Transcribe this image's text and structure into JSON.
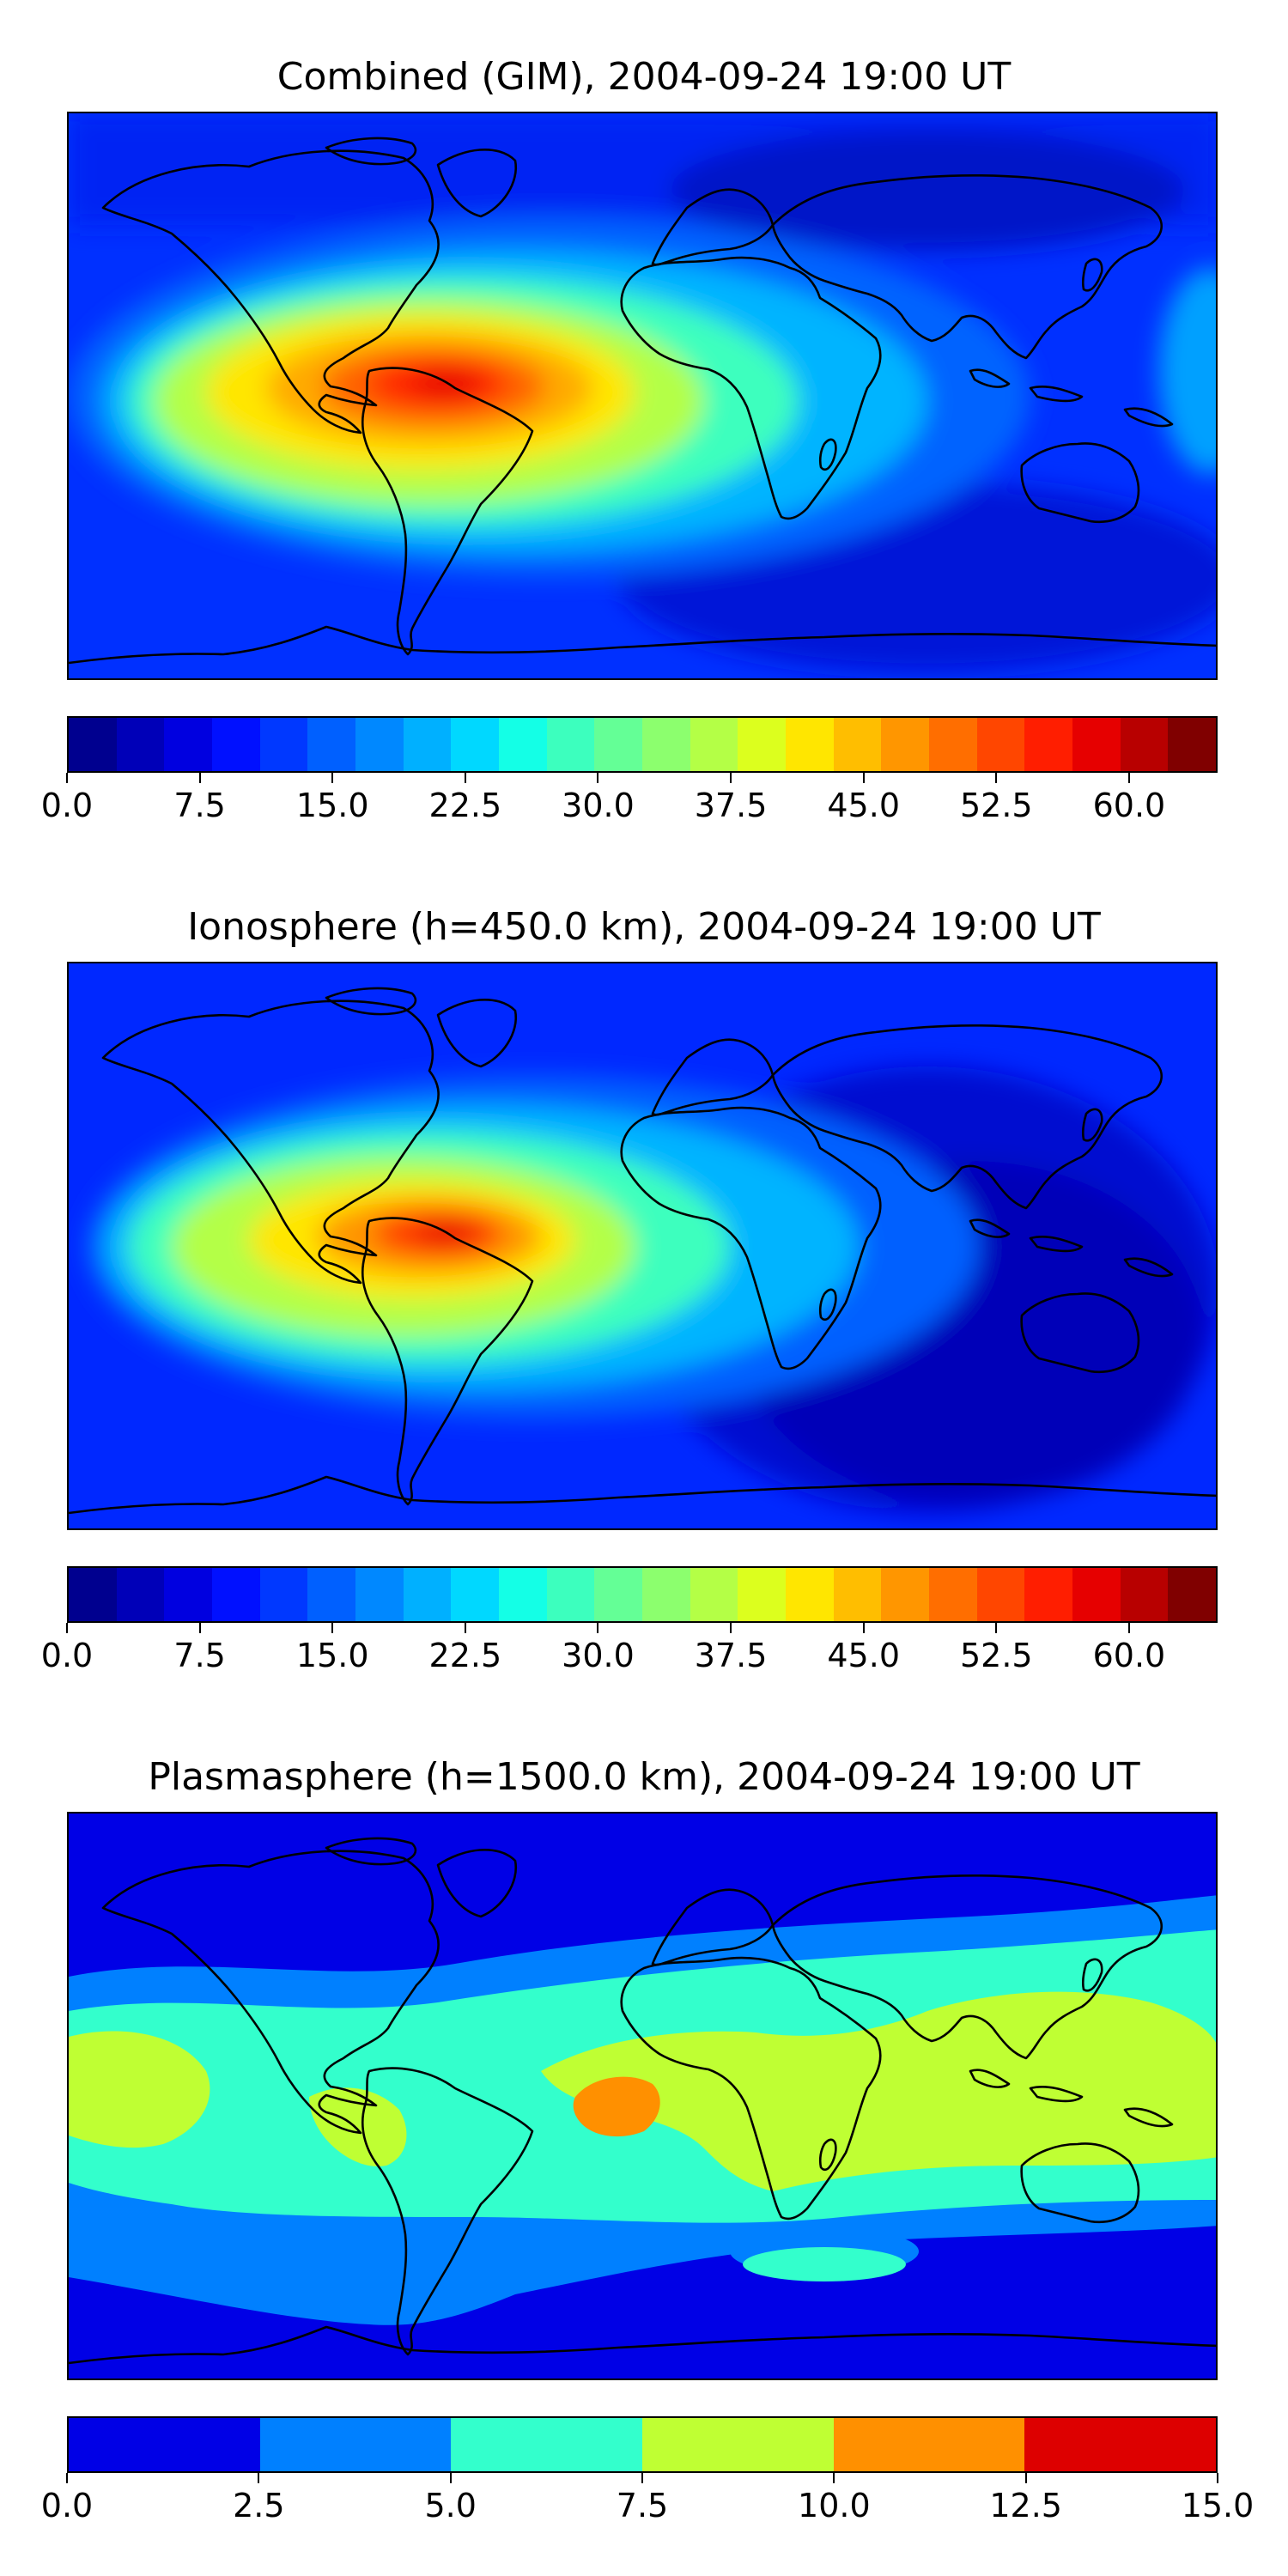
{
  "panels": [
    {
      "title": "Combined (GIM), 2004-09-24 19:00 UT",
      "colorbar": {
        "colors": [
          "#00008f",
          "#0000b8",
          "#0000e0",
          "#0010ff",
          "#0038ff",
          "#0060ff",
          "#0088ff",
          "#00b0ff",
          "#00d8ff",
          "#14ffe6",
          "#3cffbe",
          "#64ff96",
          "#8cff6e",
          "#b4ff46",
          "#dcff1e",
          "#ffe600",
          "#ffbe00",
          "#ff9600",
          "#ff6e00",
          "#ff4600",
          "#ff1e00",
          "#e60000",
          "#b80000",
          "#800000"
        ],
        "tick_labels": [
          "0.0",
          "7.5",
          "15.0",
          "22.5",
          "30.0",
          "37.5",
          "45.0",
          "52.5",
          "60.0"
        ],
        "tick_values": [
          0,
          7.5,
          15,
          22.5,
          30,
          37.5,
          45,
          52.5,
          60
        ],
        "range": [
          0,
          65
        ]
      }
    },
    {
      "title": "Ionosphere  (h=450.0 km), 2004-09-24 19:00 UT",
      "colorbar": {
        "colors": [
          "#00008f",
          "#0000b8",
          "#0000e0",
          "#0010ff",
          "#0038ff",
          "#0060ff",
          "#0088ff",
          "#00b0ff",
          "#00d8ff",
          "#14ffe6",
          "#3cffbe",
          "#64ff96",
          "#8cff6e",
          "#b4ff46",
          "#dcff1e",
          "#ffe600",
          "#ffbe00",
          "#ff9600",
          "#ff6e00",
          "#ff4600",
          "#ff1e00",
          "#e60000",
          "#b80000",
          "#800000"
        ],
        "tick_labels": [
          "0.0",
          "7.5",
          "15.0",
          "22.5",
          "30.0",
          "37.5",
          "45.0",
          "52.5",
          "60.0"
        ],
        "tick_values": [
          0,
          7.5,
          15,
          22.5,
          30,
          37.5,
          45,
          52.5,
          60
        ],
        "range": [
          0,
          65
        ]
      }
    },
    {
      "title": "Plasmasphere (h=1500.0 km), 2004-09-24 19:00 UT",
      "colorbar": {
        "colors": [
          "#0000e6",
          "#0080ff",
          "#33ffcc",
          "#bfff33",
          "#ff9000",
          "#dd0000"
        ],
        "tick_labels": [
          "0.0",
          "2.5",
          "5.0",
          "7.5",
          "10.0",
          "12.5",
          "15.0"
        ],
        "tick_values": [
          0,
          2.5,
          5,
          7.5,
          10,
          12.5,
          15
        ],
        "range": [
          0,
          15
        ]
      }
    }
  ]
}
